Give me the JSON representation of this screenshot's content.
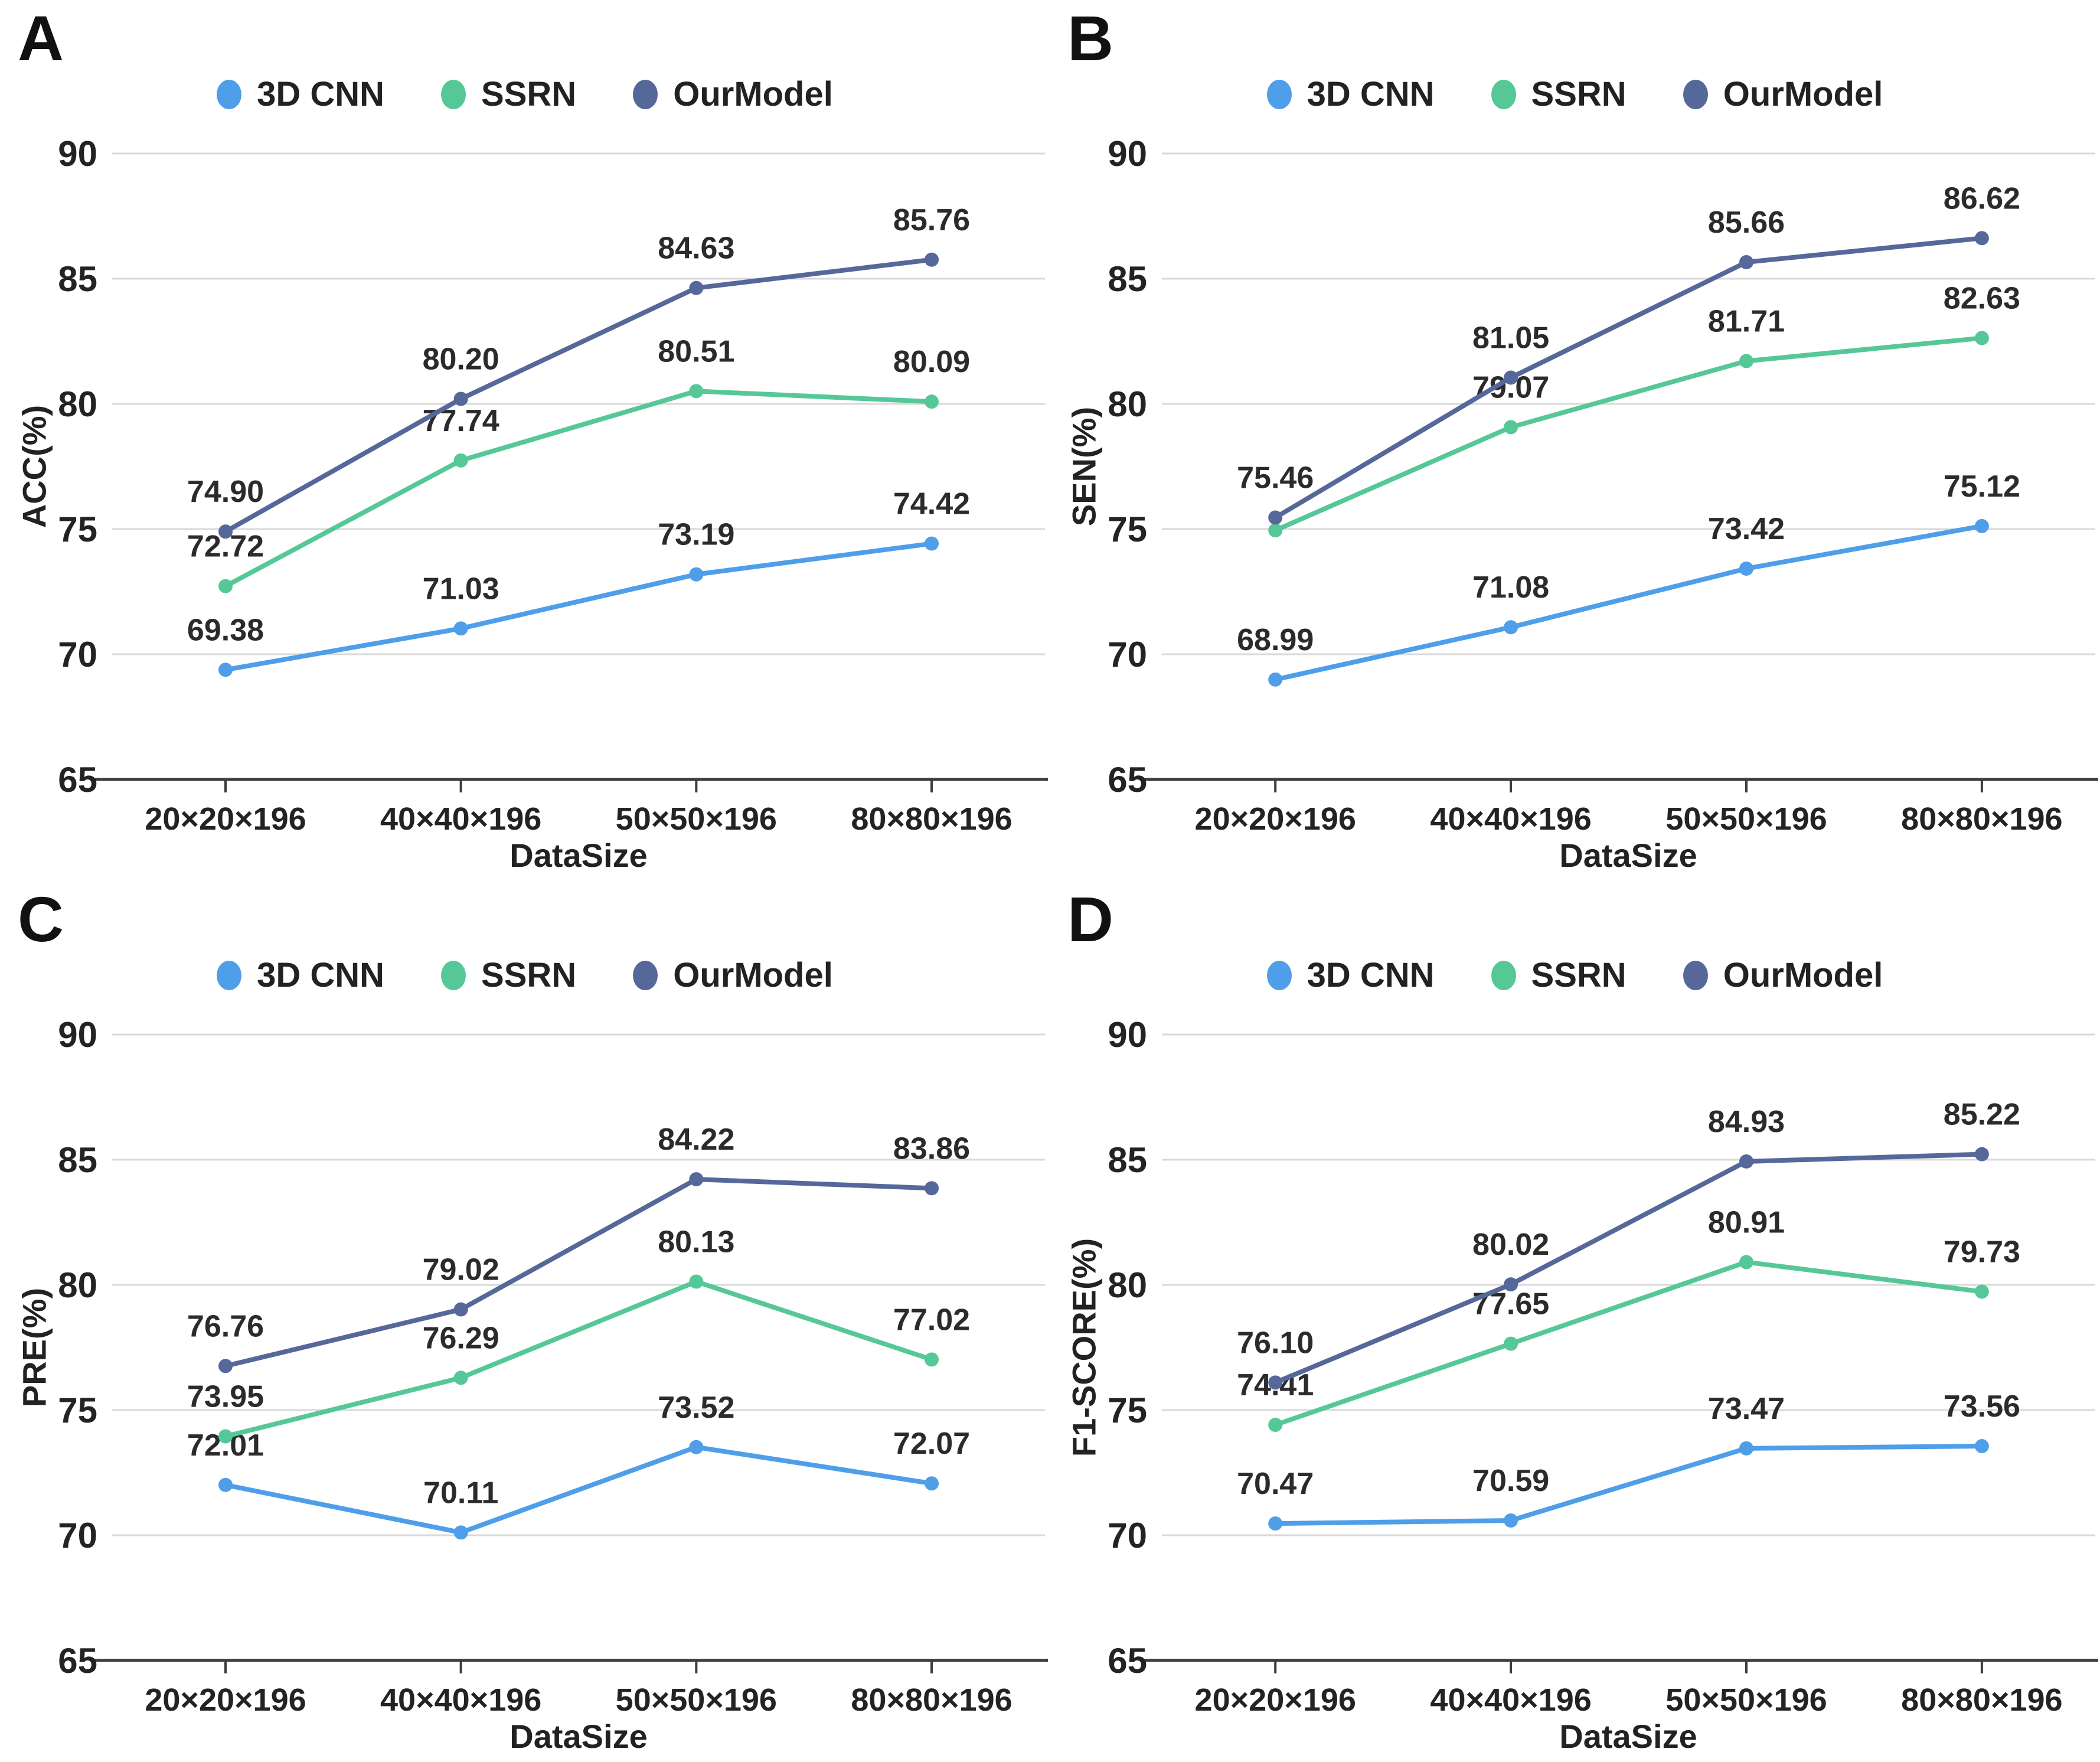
{
  "figure_background": "#ffffff",
  "legend": {
    "position": "top",
    "series": [
      {
        "name": "3D CNN",
        "color": "#4f9ee9"
      },
      {
        "name": "SSRN",
        "color": "#56c897"
      },
      {
        "name": "OurModel",
        "color": "#56689a"
      }
    ]
  },
  "style_colors": {
    "gridline": "#d9d9d9",
    "axis_line": "#3d3d3d",
    "text": "#232323"
  },
  "chart_data": [
    {
      "type": "line",
      "panel_letter": "A",
      "ylabel": "ACC(%)",
      "xlabel": "DataSize",
      "ylim": [
        65,
        90
      ],
      "y_ticks": [
        90,
        85,
        80,
        75,
        70,
        65
      ],
      "grid": true,
      "categories": [
        "20×20×196",
        "40×40×196",
        "50×50×196",
        "80×80×196"
      ],
      "series": [
        {
          "name": "3D CNN",
          "values": [
            69.38,
            71.03,
            73.19,
            74.42
          ],
          "labels": [
            "69.38",
            "71.03",
            "73.19",
            "74.42"
          ]
        },
        {
          "name": "SSRN",
          "values": [
            72.72,
            77.74,
            80.51,
            80.09
          ],
          "labels": [
            "72.72",
            "77.74",
            "80.51",
            "80.09"
          ]
        },
        {
          "name": "OurModel",
          "values": [
            74.9,
            80.2,
            84.63,
            85.76
          ],
          "labels": [
            "74.90",
            "80.20",
            "84.63",
            "85.76"
          ]
        }
      ]
    },
    {
      "type": "line",
      "panel_letter": "B",
      "ylabel": "SEN(%)",
      "xlabel": "DataSize",
      "ylim": [
        65,
        90
      ],
      "y_ticks": [
        90,
        85,
        80,
        75,
        70,
        65
      ],
      "grid": true,
      "categories": [
        "20×20×196",
        "40×40×196",
        "50×50×196",
        "80×80×196"
      ],
      "series": [
        {
          "name": "3D CNN",
          "values": [
            68.99,
            71.08,
            73.42,
            75.12
          ],
          "labels": [
            "68.99",
            "71.08",
            "73.42",
            "75.12"
          ]
        },
        {
          "name": "SSRN",
          "values": [
            74.95,
            79.07,
            81.71,
            82.63
          ],
          "labels": [
            "",
            "79.07",
            "81.71",
            "82.63"
          ]
        },
        {
          "name": "OurModel",
          "values": [
            75.46,
            81.05,
            85.66,
            86.62
          ],
          "labels": [
            "75.46",
            "81.05",
            "85.66",
            "86.62"
          ]
        }
      ]
    },
    {
      "type": "line",
      "panel_letter": "C",
      "ylabel": "PRE(%)",
      "xlabel": "DataSize",
      "ylim": [
        65,
        90
      ],
      "y_ticks": [
        90,
        85,
        80,
        75,
        70,
        65
      ],
      "grid": true,
      "categories": [
        "20×20×196",
        "40×40×196",
        "50×50×196",
        "80×80×196"
      ],
      "series": [
        {
          "name": "3D CNN",
          "values": [
            72.01,
            70.11,
            73.52,
            72.07
          ],
          "labels": [
            "72.01",
            "70.11",
            "73.52",
            "72.07"
          ]
        },
        {
          "name": "SSRN",
          "values": [
            73.95,
            76.29,
            80.13,
            77.02
          ],
          "labels": [
            "73.95",
            "76.29",
            "80.13",
            "77.02"
          ]
        },
        {
          "name": "OurModel",
          "values": [
            76.76,
            79.02,
            84.22,
            83.86
          ],
          "labels": [
            "76.76",
            "79.02",
            "84.22",
            "83.86"
          ]
        }
      ]
    },
    {
      "type": "line",
      "panel_letter": "D",
      "ylabel": "F1-SCORE(%)",
      "xlabel": "DataSize",
      "ylim": [
        65,
        90
      ],
      "y_ticks": [
        90,
        85,
        80,
        75,
        70,
        65
      ],
      "grid": true,
      "categories": [
        "20×20×196",
        "40×40×196",
        "50×50×196",
        "80×80×196"
      ],
      "series": [
        {
          "name": "3D CNN",
          "values": [
            70.47,
            70.59,
            73.47,
            73.56
          ],
          "labels": [
            "70.47",
            "70.59",
            "73.47",
            "73.56"
          ]
        },
        {
          "name": "SSRN",
          "values": [
            74.41,
            77.65,
            80.91,
            79.73
          ],
          "labels": [
            "74.41",
            "77.65",
            "80.91",
            "79.73"
          ]
        },
        {
          "name": "OurModel",
          "values": [
            76.1,
            80.02,
            84.93,
            85.22
          ],
          "labels": [
            "76.10",
            "80.02",
            "84.93",
            "85.22"
          ]
        }
      ]
    }
  ]
}
